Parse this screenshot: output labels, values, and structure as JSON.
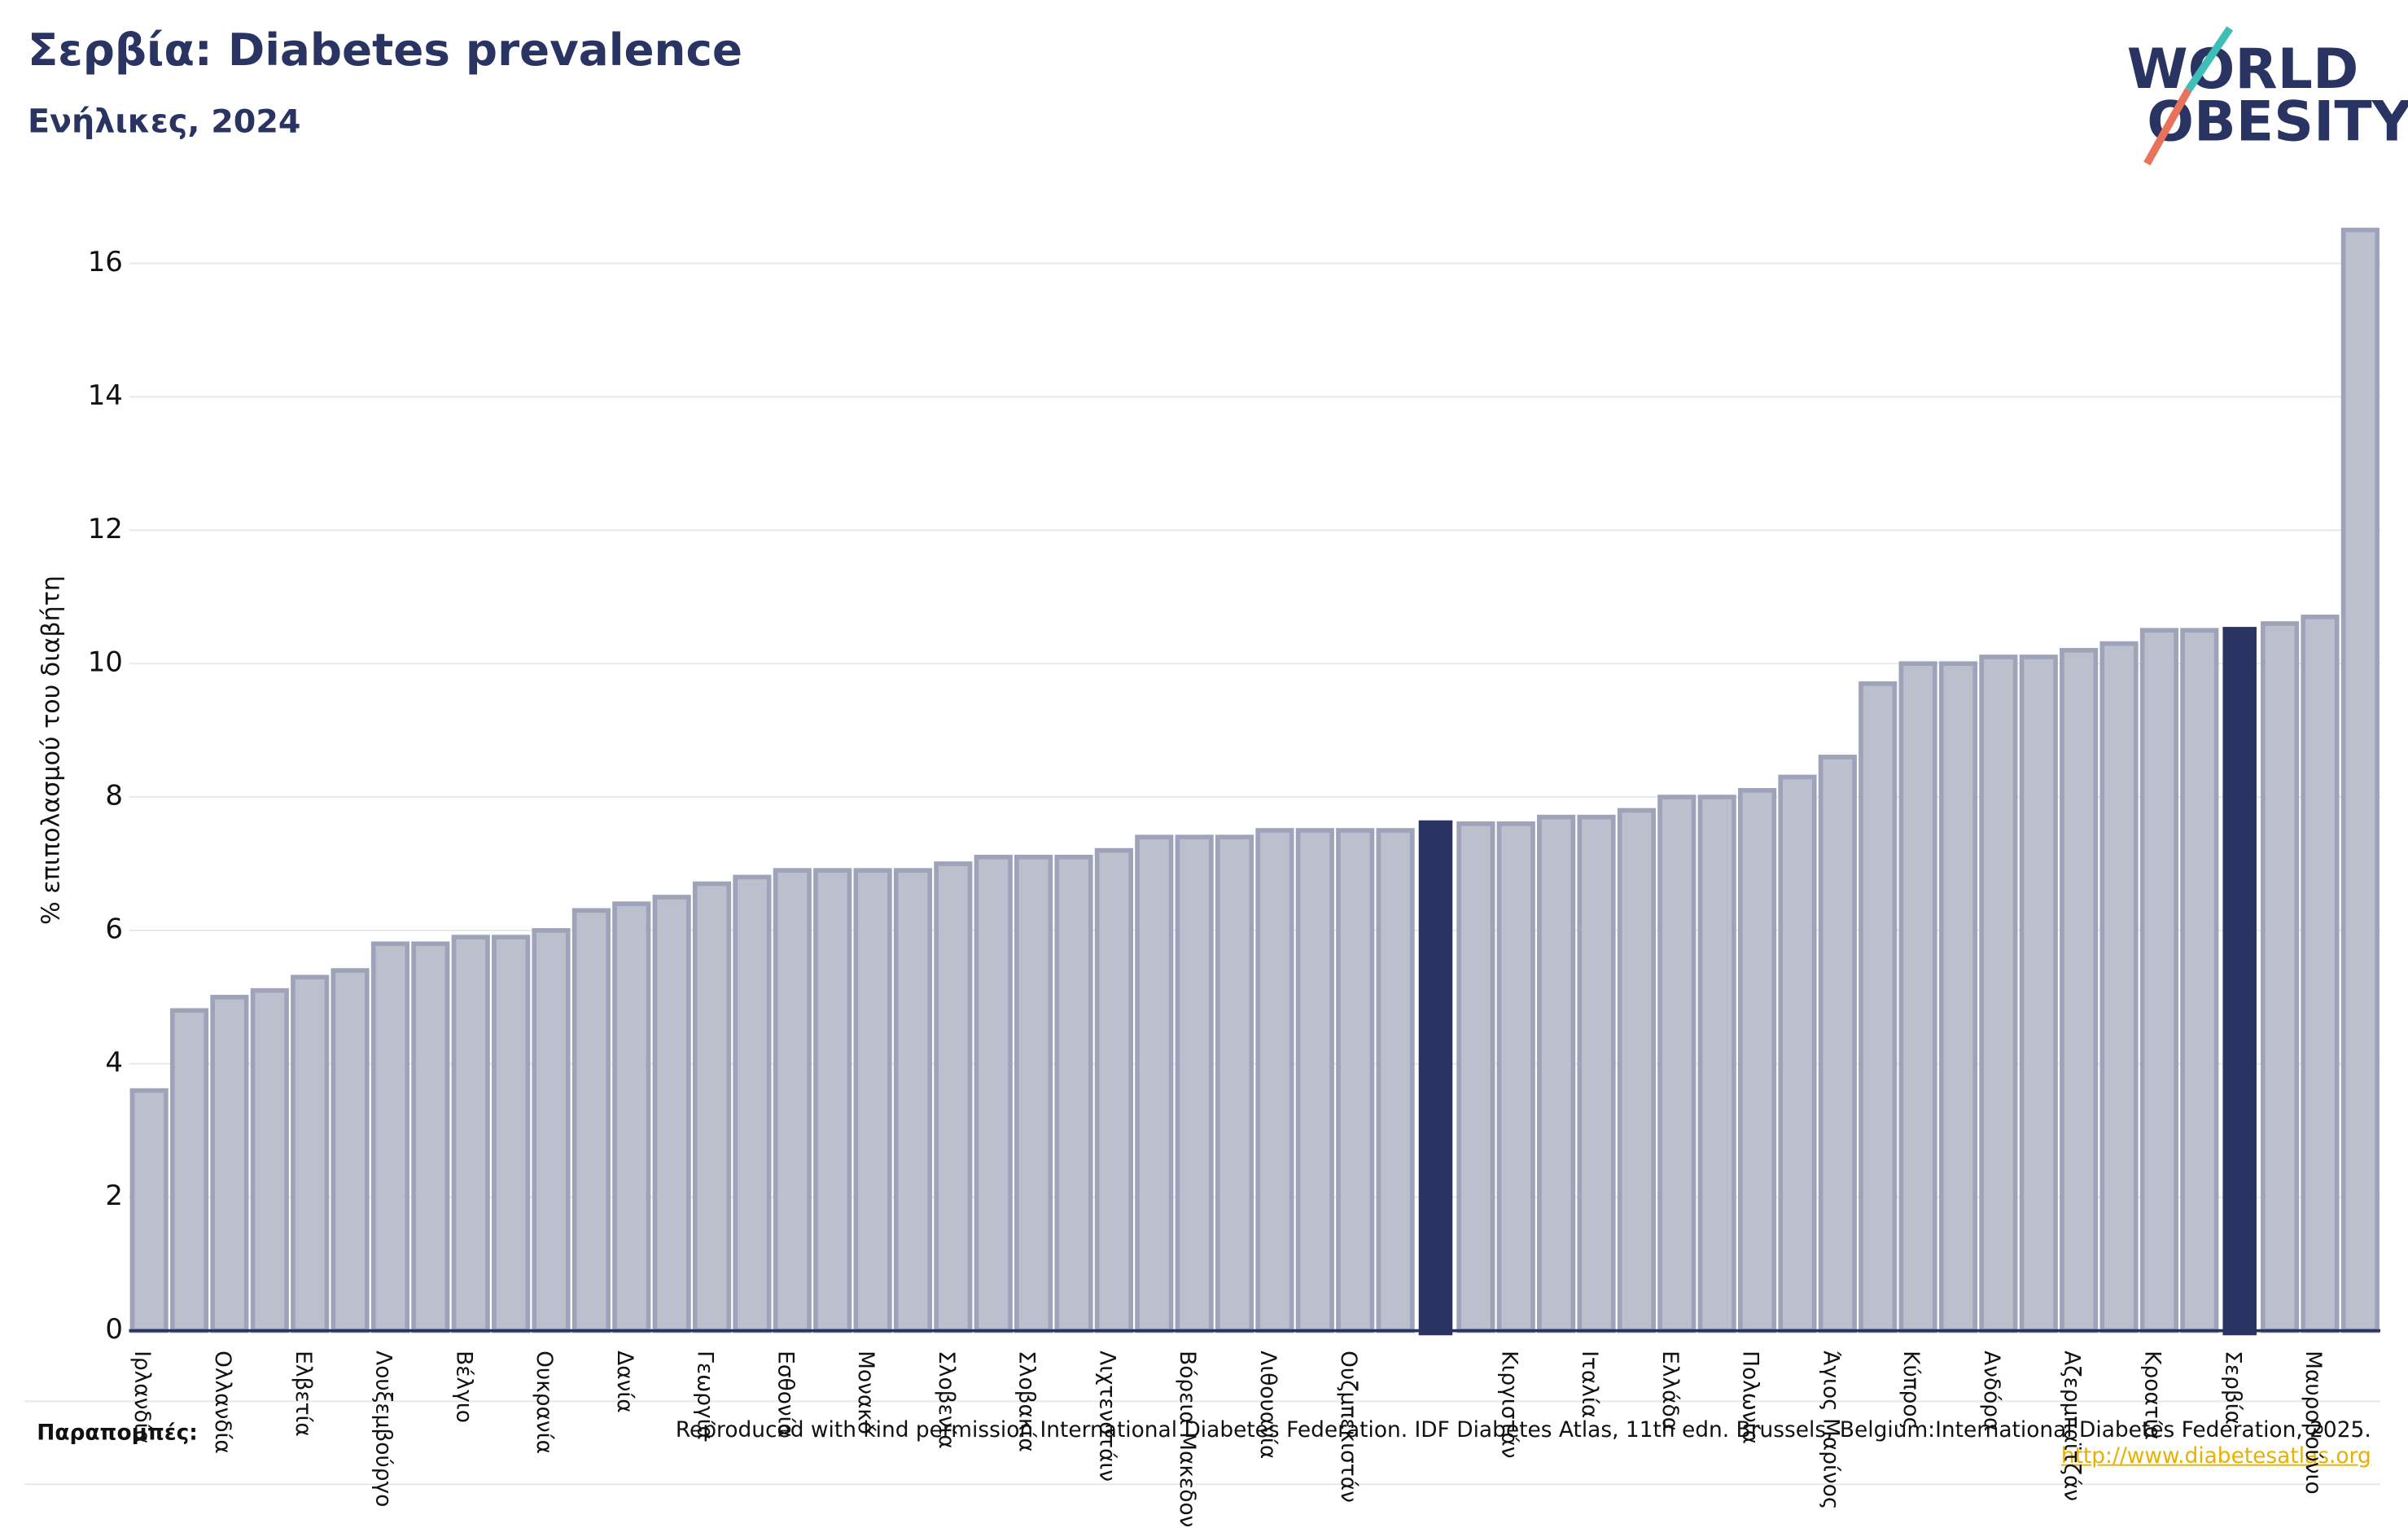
{
  "chart_data": {
    "type": "bar",
    "title": "Σερβία: Diabetes prevalence",
    "subtitle": "Ενήλικες, 2024",
    "y_label": "% επιπολασμού του διαβήτη",
    "logo": [
      "WORLD",
      "OBESITY"
    ],
    "references_label": "Παραπομπές:",
    "source": "Reproduced with kind permission International Diabetes Federation. IDF Diabetes Atlas, 11th edn. Brussels, Belgium:International Diabetes Federation, 2025.",
    "source_link": "http://www.diabetesatlas.org",
    "categories": [
      "Ιρλανδία",
      null,
      "Ολλανδία",
      null,
      "Ελβετία",
      null,
      "Λουξεμβούργο",
      null,
      "Βέλγιο",
      null,
      "Ουκρανία",
      null,
      "Δανία",
      null,
      "Γεωργία",
      null,
      "Εσθονία",
      null,
      "Μονακό",
      null,
      "Σλοβενία",
      null,
      "Σλοβακία",
      null,
      "Λιχτενστάιν",
      null,
      "Βόρεια Μακεδονία",
      null,
      "Λιθουανία",
      null,
      "Ουζμπεκιστάν",
      null,
      null,
      null,
      "Κιργιστάν",
      null,
      "Ιταλία",
      null,
      "Ελλάδα",
      null,
      "Πολωνία",
      null,
      "Άγιος Μαρίνος",
      null,
      "Κύπρος",
      null,
      "Ανδόρα",
      null,
      "Αζερμπαϊτζάν",
      null,
      "Κροατία",
      null,
      "Σερβία",
      null,
      "Μαυροβούνιο",
      null
    ],
    "values": [
      3.6,
      4.8,
      5.0,
      5.1,
      5.3,
      5.4,
      5.8,
      5.8,
      5.9,
      5.9,
      6.0,
      6.3,
      6.4,
      6.5,
      6.7,
      6.8,
      6.9,
      6.9,
      6.9,
      6.9,
      7.0,
      7.1,
      7.1,
      7.1,
      7.2,
      7.4,
      7.4,
      7.4,
      7.5,
      7.5,
      7.5,
      7.5,
      7.65,
      7.6,
      7.6,
      7.7,
      7.7,
      7.8,
      8.0,
      8.0,
      8.1,
      8.3,
      8.6,
      9.7,
      10.0,
      10.0,
      10.1,
      10.1,
      10.2,
      10.3,
      10.5,
      10.5,
      10.55,
      10.6,
      10.7,
      16.5
    ],
    "colors": [
      "#bcc0cc",
      "#bcc0cc",
      "#bcc0cc",
      "#bcc0cc",
      "#bcc0cc",
      "#bcc0cc",
      "#bcc0cc",
      "#bcc0cc",
      "#bcc0cc",
      "#bcc0cc",
      "#bcc0cc",
      "#bcc0cc",
      "#bcc0cc",
      "#bcc0cc",
      "#bcc0cc",
      "#bcc0cc",
      "#bcc0cc",
      "#bcc0cc",
      "#bcc0cc",
      "#bcc0cc",
      "#bcc0cc",
      "#bcc0cc",
      "#bcc0cc",
      "#bcc0cc",
      "#bcc0cc",
      "#bcc0cc",
      "#bcc0cc",
      "#bcc0cc",
      "#bcc0cc",
      "#bcc0cc",
      "#bcc0cc",
      "#bcc0cc",
      "#293462",
      "#bcc0cc",
      "#bcc0cc",
      "#bcc0cc",
      "#bcc0cc",
      "#bcc0cc",
      "#bcc0cc",
      "#bcc0cc",
      "#bcc0cc",
      "#bcc0cc",
      "#bcc0cc",
      "#bcc0cc",
      "#bcc0cc",
      "#bcc0cc",
      "#bcc0cc",
      "#bcc0cc",
      "#bcc0cc",
      "#bcc0cc",
      "#bcc0cc",
      "#bcc0cc",
      "#293462",
      "#bcc0cc",
      "#bcc0cc",
      "#bcc0cc"
    ],
    "ylim": [
      0,
      16.8
    ],
    "yticks": [
      0,
      2,
      4,
      6,
      8,
      10,
      12,
      14,
      16
    ],
    "grid": true
  }
}
